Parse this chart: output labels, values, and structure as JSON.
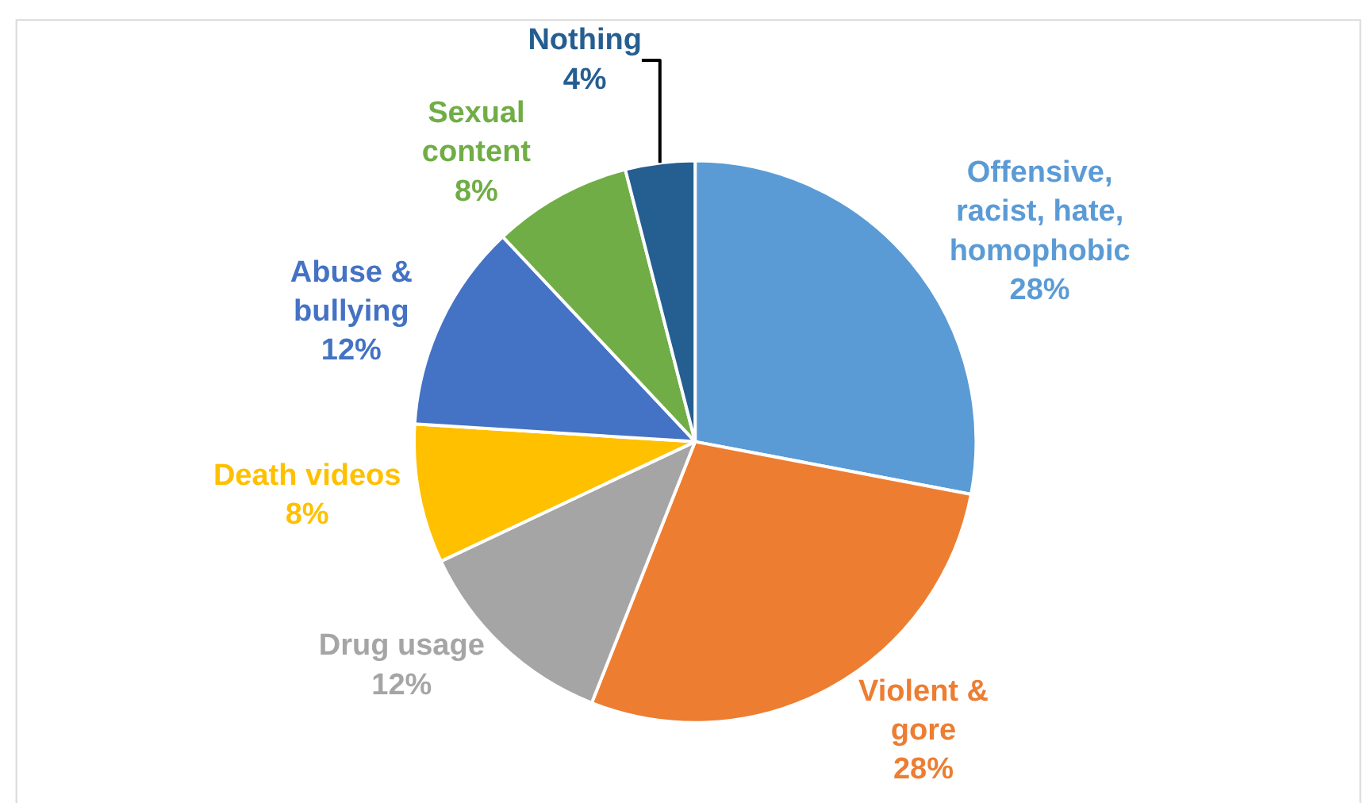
{
  "chart_data": {
    "type": "pie",
    "categories": [
      "Offensive, racist, hate, homophobic",
      "Violent & gore",
      "Drug usage",
      "Death videos",
      "Abuse & bullying",
      "Sexual content",
      "Nothing"
    ],
    "values": [
      28,
      28,
      12,
      8,
      12,
      8,
      4
    ],
    "value_labels": [
      "28%",
      "28%",
      "12%",
      "8%",
      "12%",
      "8%",
      "4%"
    ],
    "colors": [
      "#5b9bd5",
      "#ed7d31",
      "#a5a5a5",
      "#ffc000",
      "#4472c4",
      "#70ad47",
      "#255e91"
    ],
    "legend": false
  }
}
